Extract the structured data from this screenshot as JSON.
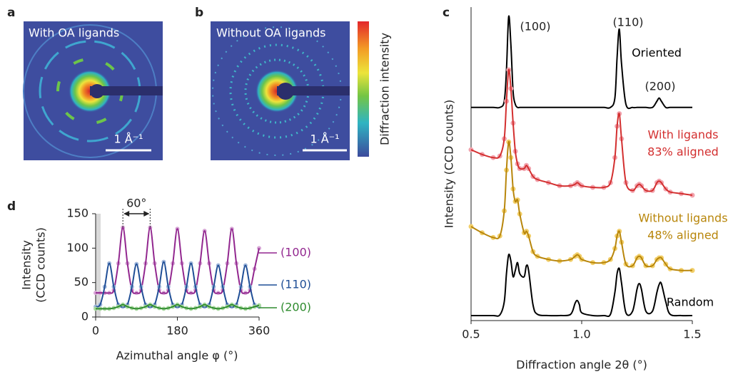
{
  "chart_data": [
    {
      "type": "image",
      "label": "a",
      "title": "With OA ligands",
      "scale_bar": "1 Å⁻¹"
    },
    {
      "type": "image",
      "label": "b",
      "title": "Without OA ligands",
      "scale_bar": "1 Å⁻¹",
      "colorbar_label": "Diffraction intensity"
    },
    {
      "type": "line",
      "label": "c",
      "xlabel": "Diffraction angle 2θ (°)",
      "ylabel": "Intensity (CCD counts)",
      "xlim": [
        0.5,
        1.5
      ],
      "xticks": [
        0.5,
        {
          "value": 1,
          "label": "1.0"
        },
        1.5
      ],
      "ylim": [
        0,
        100
      ],
      "annotations": [
        "(100)",
        "(110)",
        "(200)"
      ],
      "x": [
        0.5,
        0.55,
        0.6,
        0.63,
        0.65,
        0.66,
        0.67,
        0.68,
        0.69,
        0.7,
        0.71,
        0.72,
        0.74,
        0.75,
        0.76,
        0.78,
        0.8,
        0.85,
        0.9,
        0.95,
        0.97,
        0.98,
        0.99,
        1.0,
        1.05,
        1.1,
        1.13,
        1.15,
        1.16,
        1.17,
        1.18,
        1.2,
        1.23,
        1.25,
        1.26,
        1.27,
        1.29,
        1.32,
        1.34,
        1.35,
        1.36,
        1.38,
        1.4,
        1.45,
        1.5
      ],
      "series": [
        {
          "name": "Oriented",
          "color": "#000000",
          "values": [
            68,
            68,
            68,
            68,
            70,
            80,
            97,
            88,
            73,
            69,
            68,
            68,
            68,
            68,
            68,
            68,
            68,
            68,
            68,
            68,
            68,
            68,
            68,
            68,
            68,
            68,
            68,
            71,
            84,
            93,
            82,
            69,
            68,
            68,
            68,
            68,
            68,
            68,
            70,
            71,
            70,
            68,
            68,
            68,
            68
          ]
        },
        {
          "name": "With ligands",
          "subtitle": "83% aligned",
          "color": "#d32f2f",
          "marker_color": "#f2a3ad",
          "values": [
            54.5,
            53,
            52,
            52.5,
            58,
            70,
            80,
            74,
            63,
            54,
            50,
            48.5,
            48.5,
            49.5,
            48.5,
            46,
            45,
            44,
            43,
            43,
            43.5,
            44,
            43.5,
            43,
            42.5,
            42.5,
            44,
            52,
            62,
            66,
            58,
            44,
            41.5,
            43,
            43.5,
            43,
            41.5,
            41.5,
            44,
            44.5,
            44,
            42,
            41,
            40.5,
            40
          ]
        },
        {
          "name": "Without ligands",
          "subtitle": "48% aligned",
          "color": "#b8860b",
          "marker_color": "#f2cf6a",
          "values": [
            30,
            28,
            26.5,
            27,
            35,
            48,
            57,
            52,
            42,
            38,
            38.5,
            34,
            28,
            28.5,
            27,
            22,
            20.5,
            19.5,
            19,
            19.5,
            20.5,
            21,
            20.5,
            19.5,
            18.5,
            18.5,
            19.5,
            23,
            27,
            28.5,
            25,
            18,
            17.5,
            20,
            20.5,
            20,
            17.5,
            17.5,
            19.5,
            20,
            20,
            18,
            16.5,
            16,
            16
          ]
        },
        {
          "name": "Random",
          "color": "#000000",
          "values": [
            1.6,
            1.6,
            1.6,
            1.8,
            6,
            15,
            21,
            19,
            14,
            16,
            18.5,
            15,
            14,
            17.5,
            16,
            5,
            2,
            1.6,
            1.6,
            2,
            5.5,
            6.4,
            5,
            2.5,
            1.6,
            1.6,
            2,
            9,
            15,
            16.6,
            12,
            2.5,
            3,
            10,
            11.8,
            10,
            3,
            3,
            9,
            11.5,
            11.8,
            6,
            2,
            1.6,
            1.6
          ]
        }
      ]
    },
    {
      "type": "line",
      "label": "d",
      "xlabel": "Azimuthal angle φ (°)",
      "ylabel": [
        "Intensity",
        "(CCD counts)"
      ],
      "xlim": [
        0,
        360
      ],
      "xticks": [
        0,
        180,
        360
      ],
      "ylim": [
        0,
        150
      ],
      "yticks": [
        0,
        50,
        100,
        150
      ],
      "annotation": {
        "text": "60°",
        "span": [
          60,
          120
        ]
      },
      "x": [
        0,
        10,
        20,
        30,
        40,
        50,
        60,
        70,
        80,
        90,
        100,
        110,
        120,
        130,
        140,
        150,
        160,
        170,
        180,
        190,
        200,
        210,
        220,
        230,
        240,
        250,
        260,
        270,
        280,
        290,
        300,
        310,
        320,
        330,
        340,
        350,
        360
      ],
      "series": [
        {
          "name": "(100)",
          "color": "#92278f",
          "marker_color": "#d7a6d6",
          "values": [
            35,
            35,
            35,
            35,
            39,
            78,
            130,
            78,
            39,
            35,
            39,
            78,
            130,
            78,
            39,
            35,
            39,
            78,
            128,
            78,
            39,
            35,
            39,
            78,
            125,
            78,
            39,
            35,
            39,
            78,
            128,
            78,
            39,
            35,
            39,
            70,
            100
          ]
        },
        {
          "name": "(110)",
          "color": "#1f4e96",
          "marker_color": "#a3b9dc",
          "values": [
            15,
            18,
            44,
            78,
            44,
            18,
            15,
            18,
            44,
            77,
            44,
            18,
            15,
            18,
            44,
            80,
            44,
            18,
            15,
            18,
            44,
            78,
            44,
            18,
            15,
            18,
            44,
            75,
            44,
            18,
            15,
            18,
            44,
            75,
            44,
            18,
            15
          ]
        },
        {
          "name": "(200)",
          "color": "#2e8b2e",
          "marker_color": "#a9d9a0",
          "values": [
            12,
            12,
            12,
            12,
            13,
            15,
            18,
            15,
            13,
            12,
            13,
            15,
            18,
            15,
            13,
            12,
            13,
            15,
            18,
            15,
            13,
            12,
            13,
            15,
            18,
            15,
            13,
            12,
            13,
            15,
            18,
            15,
            13,
            12,
            13,
            15,
            17
          ]
        }
      ]
    }
  ]
}
